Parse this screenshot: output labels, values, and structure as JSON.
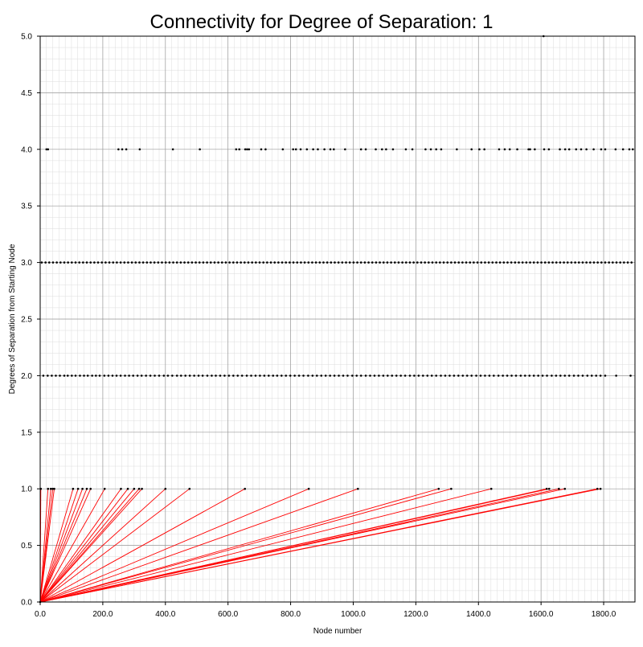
{
  "chart_data": {
    "type": "scatter",
    "title": "Connectivity for Degree of Separation: 1",
    "xlabel": "Node number",
    "ylabel": "Degrees of Separation from Starting Node",
    "xlim": [
      0,
      1900
    ],
    "ylim": [
      0,
      5.0
    ],
    "x_ticks": [
      "0.0",
      "200.0",
      "400.0",
      "600.0",
      "800.0",
      "1000.0",
      "1200.0",
      "1400.0",
      "1600.0",
      "1800.0"
    ],
    "y_ticks": [
      "0.0",
      "0.5",
      "1.0",
      "1.5",
      "2.0",
      "2.5",
      "3.0",
      "3.5",
      "4.0",
      "4.5",
      "5.0"
    ],
    "grid": true,
    "start_node": {
      "x": 0,
      "y": 0
    },
    "edge_color": "#ff0000",
    "point_color": "#000000",
    "series": [
      {
        "y": 1,
        "x": [
          2,
          25,
          34,
          40,
          45,
          105,
          121,
          135,
          149,
          161,
          206,
          258,
          280,
          300,
          316,
          325,
          400,
          477,
          654,
          858,
          1015,
          1273,
          1313,
          1441,
          1618,
          1626,
          1657,
          1676,
          1780,
          1790
        ]
      },
      {
        "y": 2,
        "x": [
          10,
          24,
          37,
          50,
          63,
          77,
          88,
          101,
          113,
          127,
          140,
          152,
          166,
          178,
          190,
          205,
          218,
          231,
          244,
          257,
          271,
          284,
          297,
          311,
          324,
          338,
          352,
          366,
          380,
          395,
          408,
          422,
          437,
          450,
          464,
          478,
          492,
          506,
          519,
          534,
          548,
          561,
          575,
          589,
          603,
          617,
          631,
          645,
          660,
          674,
          688,
          702,
          716,
          730,
          744,
          757,
          771,
          785,
          799,
          813,
          827,
          841,
          856,
          870,
          884,
          898,
          912,
          926,
          940,
          954,
          968,
          982,
          997,
          1011,
          1025,
          1040,
          1054,
          1068,
          1082,
          1096,
          1110,
          1124,
          1138,
          1152,
          1166,
          1181,
          1195,
          1209,
          1223,
          1237,
          1251,
          1265,
          1280,
          1294,
          1308,
          1322,
          1336,
          1350,
          1364,
          1378,
          1393,
          1407,
          1421,
          1435,
          1449,
          1464,
          1478,
          1492,
          1506,
          1520,
          1535,
          1549,
          1563,
          1577,
          1591,
          1605,
          1619,
          1634,
          1648,
          1662,
          1676,
          1690,
          1705,
          1719,
          1733,
          1748,
          1762,
          1776,
          1790,
          1805,
          1840,
          1886
        ]
      },
      {
        "y": 3,
        "x": [
          5,
          17,
          29,
          41,
          53,
          65,
          77,
          89,
          101,
          113,
          125,
          137,
          149,
          161,
          173,
          185,
          197,
          209,
          221,
          233,
          245,
          257,
          269,
          281,
          293,
          305,
          317,
          329,
          341,
          353,
          365,
          377,
          389,
          401,
          413,
          425,
          437,
          449,
          461,
          473,
          485,
          497,
          509,
          521,
          533,
          545,
          557,
          569,
          581,
          593,
          605,
          617,
          629,
          641,
          653,
          665,
          677,
          689,
          701,
          713,
          725,
          737,
          749,
          761,
          773,
          785,
          797,
          809,
          821,
          833,
          845,
          857,
          869,
          881,
          893,
          905,
          917,
          929,
          941,
          953,
          965,
          977,
          989,
          1001,
          1013,
          1025,
          1037,
          1049,
          1061,
          1073,
          1085,
          1097,
          1109,
          1121,
          1133,
          1145,
          1157,
          1169,
          1181,
          1193,
          1205,
          1217,
          1229,
          1241,
          1253,
          1265,
          1277,
          1289,
          1301,
          1313,
          1325,
          1337,
          1349,
          1361,
          1373,
          1385,
          1397,
          1409,
          1421,
          1433,
          1445,
          1457,
          1469,
          1481,
          1493,
          1505,
          1517,
          1529,
          1541,
          1553,
          1565,
          1577,
          1589,
          1601,
          1613,
          1625,
          1637,
          1649,
          1661,
          1673,
          1685,
          1697,
          1709,
          1721,
          1733,
          1745,
          1757,
          1769,
          1781,
          1793,
          1805,
          1817,
          1829,
          1841,
          1853,
          1865,
          1877,
          1889
        ]
      },
      {
        "y": 4,
        "x": [
          20,
          25,
          250,
          262,
          275,
          318,
          424,
          510,
          626,
          636,
          655,
          661,
          667,
          706,
          720,
          775,
          808,
          817,
          832,
          852,
          872,
          887,
          908,
          927,
          938,
          974,
          1025,
          1040,
          1072,
          1092,
          1105,
          1127,
          1168,
          1189,
          1231,
          1248,
          1265,
          1281,
          1331,
          1378,
          1403,
          1419,
          1466,
          1484,
          1500,
          1524,
          1560,
          1565,
          1580,
          1610,
          1625,
          1660,
          1677,
          1690,
          1712,
          1728,
          1745,
          1768,
          1792,
          1805,
          1838,
          1862,
          1882,
          1893
        ]
      },
      {
        "y": 5,
        "x": [
          1608
        ]
      }
    ]
  }
}
